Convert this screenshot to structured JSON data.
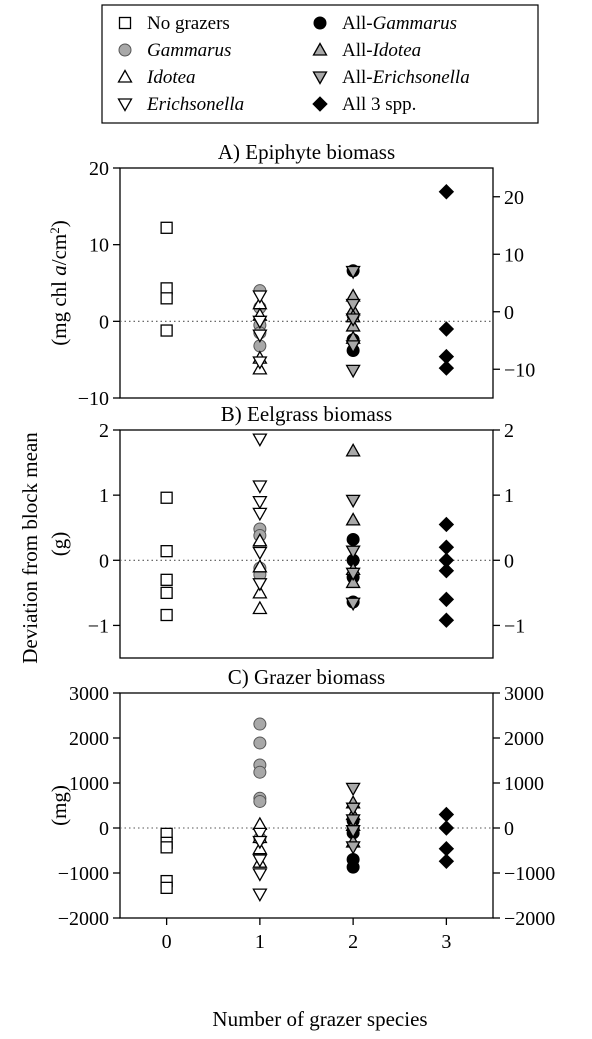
{
  "legend": {
    "entries": [
      {
        "key": "no_grazers",
        "marker": "square-open",
        "parts": [
          {
            "t": "No grazers",
            "i": false
          }
        ]
      },
      {
        "key": "gammarus",
        "marker": "circle-gray",
        "parts": [
          {
            "t": "Gammarus",
            "i": true
          }
        ]
      },
      {
        "key": "idotea",
        "marker": "triangle-up-open",
        "parts": [
          {
            "t": "Idotea",
            "i": true
          }
        ]
      },
      {
        "key": "erichsonella",
        "marker": "triangle-down-open",
        "parts": [
          {
            "t": "Erichsonella",
            "i": true
          }
        ]
      },
      {
        "key": "all_gammarus",
        "marker": "circle-black",
        "parts": [
          {
            "t": "All-",
            "i": false
          },
          {
            "t": "Gammarus",
            "i": true
          }
        ]
      },
      {
        "key": "all_idotea",
        "marker": "triangle-up-gray",
        "parts": [
          {
            "t": "All-",
            "i": false
          },
          {
            "t": "Idotea",
            "i": true
          }
        ]
      },
      {
        "key": "all_erichsonella",
        "marker": "triangle-down-gray",
        "parts": [
          {
            "t": "All-",
            "i": false
          },
          {
            "t": "Erichsonella",
            "i": true
          }
        ]
      },
      {
        "key": "all_3",
        "marker": "diamond-black",
        "parts": [
          {
            "t": "All 3 spp.",
            "i": false
          }
        ]
      }
    ]
  },
  "shared_ylabel": "Deviation from block mean",
  "xlabel": "Number of grazer species",
  "x_ticks": [
    "0",
    "1",
    "2",
    "3"
  ],
  "colors": {
    "gray_fill": "#a8a8a8",
    "black": "#000000",
    "white": "#ffffff"
  },
  "chart_data": [
    {
      "type": "scatter",
      "title": "A) Epiphyte biomass",
      "unit_parts": [
        {
          "t": "(mg chl ",
          "i": false
        },
        {
          "t": "a",
          "i": true
        },
        {
          "t": "/cm",
          "i": false
        },
        {
          "t": "2",
          "i": false,
          "sup": true
        },
        {
          "t": ")",
          "i": false
        }
      ],
      "ylim": [
        -10,
        20
      ],
      "yticks_left": [
        -10,
        0,
        10,
        20
      ],
      "ylim_right": [
        -15,
        25
      ],
      "yticks_right": [
        -10,
        0,
        10,
        20
      ],
      "zero_line": true,
      "series": [
        {
          "name": "No grazers",
          "marker": "square-open",
          "x": [
            0,
            0,
            0,
            0
          ],
          "y": [
            12.2,
            4.3,
            3.0,
            -1.2
          ]
        },
        {
          "name": "Gammarus",
          "marker": "circle-gray",
          "x": [
            1,
            1,
            1,
            1,
            1
          ],
          "y": [
            4.0,
            1.8,
            -0.5,
            -1.5,
            -3.2
          ]
        },
        {
          "name": "Idotea",
          "marker": "triangle-up-open",
          "x": [
            1,
            1,
            1,
            1
          ],
          "y": [
            2.3,
            0.8,
            -4.8,
            -6.2
          ]
        },
        {
          "name": "Erichsonella",
          "marker": "triangle-down-open",
          "x": [
            1,
            1,
            1,
            1
          ],
          "y": [
            3.3,
            0.0,
            -1.8,
            -5.3
          ]
        },
        {
          "name": "All-Gammarus",
          "marker": "circle-black",
          "x": [
            2,
            2,
            2,
            2
          ],
          "y": [
            6.6,
            0.8,
            -2.4,
            -3.8
          ]
        },
        {
          "name": "All-Idotea",
          "marker": "triangle-up-gray",
          "x": [
            2,
            2,
            2,
            2,
            2
          ],
          "y": [
            3.3,
            1.5,
            0.6,
            -0.6,
            -2.2
          ]
        },
        {
          "name": "All-Erichsonella",
          "marker": "triangle-down-gray",
          "x": [
            2,
            2,
            2,
            2,
            2
          ],
          "y": [
            6.5,
            2.2,
            0.3,
            -3.2,
            -6.4
          ]
        },
        {
          "name": "All 3 spp.",
          "marker": "diamond-black",
          "x": [
            3,
            3,
            3,
            3
          ],
          "y": [
            16.9,
            -1.0,
            -4.6,
            -6.1
          ]
        }
      ]
    },
    {
      "type": "scatter",
      "title": "B) Eelgrass biomass",
      "unit_parts": [
        {
          "t": "(g)",
          "i": false
        }
      ],
      "ylim": [
        -1.5,
        2
      ],
      "yticks_left": [
        -1,
        0,
        1,
        2
      ],
      "ylim_right": [
        -1.5,
        2
      ],
      "yticks_right": [
        -1,
        0,
        1,
        2
      ],
      "zero_line": true,
      "series": [
        {
          "name": "No grazers",
          "marker": "square-open",
          "x": [
            0,
            0,
            0,
            0,
            0
          ],
          "y": [
            0.96,
            0.14,
            -0.3,
            -0.5,
            -0.84
          ]
        },
        {
          "name": "Gammarus",
          "marker": "circle-gray",
          "x": [
            1,
            1,
            1,
            1,
            1
          ],
          "y": [
            0.48,
            0.38,
            0.22,
            -0.12,
            -0.22
          ]
        },
        {
          "name": "Idotea",
          "marker": "triangle-up-open",
          "x": [
            1,
            1,
            1,
            1
          ],
          "y": [
            0.3,
            -0.1,
            -0.5,
            -0.74
          ]
        },
        {
          "name": "Erichsonella",
          "marker": "triangle-down-open",
          "x": [
            1,
            1,
            1,
            1,
            1,
            1
          ],
          "y": [
            1.86,
            1.14,
            0.9,
            0.72,
            0.12,
            -0.36
          ]
        },
        {
          "name": "All-Gammarus",
          "marker": "circle-black",
          "x": [
            2,
            2,
            2,
            2
          ],
          "y": [
            0.32,
            0.0,
            -0.26,
            -0.64
          ]
        },
        {
          "name": "All-Idotea",
          "marker": "triangle-up-gray",
          "x": [
            2,
            2,
            2,
            2
          ],
          "y": [
            1.68,
            0.62,
            -0.14,
            -0.34
          ]
        },
        {
          "name": "All-Erichsonella",
          "marker": "triangle-down-gray",
          "x": [
            2,
            2,
            2,
            2
          ],
          "y": [
            0.92,
            0.14,
            -0.2,
            -0.66
          ]
        },
        {
          "name": "All 3 spp.",
          "marker": "diamond-black",
          "x": [
            3,
            3,
            3,
            3,
            3,
            3
          ],
          "y": [
            0.55,
            0.2,
            0.0,
            -0.16,
            -0.6,
            -0.92
          ]
        }
      ]
    },
    {
      "type": "scatter",
      "title": "C) Grazer biomass",
      "unit_parts": [
        {
          "t": "(mg)",
          "i": false
        }
      ],
      "ylim": [
        -2000,
        3000
      ],
      "yticks_left": [
        -2000,
        -1000,
        0,
        1000,
        2000,
        3000
      ],
      "ylim_right": [
        -2000,
        3000
      ],
      "yticks_right": [
        -2000,
        -1000,
        0,
        1000,
        2000,
        3000
      ],
      "zero_line": true,
      "series": [
        {
          "name": "No grazers",
          "marker": "square-open",
          "x": [
            0,
            0,
            0,
            0,
            0
          ],
          "y": [
            -130,
            -330,
            -430,
            -1180,
            -1330
          ]
        },
        {
          "name": "Gammarus",
          "marker": "circle-gray",
          "x": [
            1,
            1,
            1,
            1,
            1,
            1,
            1
          ],
          "y": [
            2310,
            1890,
            1400,
            1240,
            660,
            590,
            -230
          ]
        },
        {
          "name": "Idotea",
          "marker": "triangle-up-open",
          "x": [
            1,
            1,
            1,
            1
          ],
          "y": [
            80,
            -210,
            -460,
            -760
          ]
        },
        {
          "name": "Erichsonella",
          "marker": "triangle-down-open",
          "x": [
            1,
            1,
            1,
            1,
            1
          ],
          "y": [
            -120,
            -300,
            -710,
            -1020,
            -1470
          ]
        },
        {
          "name": "All-Gammarus",
          "marker": "circle-black",
          "x": [
            2,
            2,
            2,
            2
          ],
          "y": [
            160,
            -110,
            -700,
            -870
          ]
        },
        {
          "name": "All-Idotea",
          "marker": "triangle-up-gray",
          "x": [
            2,
            2,
            2,
            2
          ],
          "y": [
            560,
            300,
            60,
            -310
          ]
        },
        {
          "name": "All-Erichsonella",
          "marker": "triangle-down-gray",
          "x": [
            2,
            2,
            2,
            2,
            2
          ],
          "y": [
            880,
            440,
            180,
            -60,
            -420
          ]
        },
        {
          "name": "All 3 spp.",
          "marker": "diamond-black",
          "x": [
            3,
            3,
            3,
            3
          ],
          "y": [
            300,
            0,
            -460,
            -740
          ]
        }
      ]
    }
  ]
}
